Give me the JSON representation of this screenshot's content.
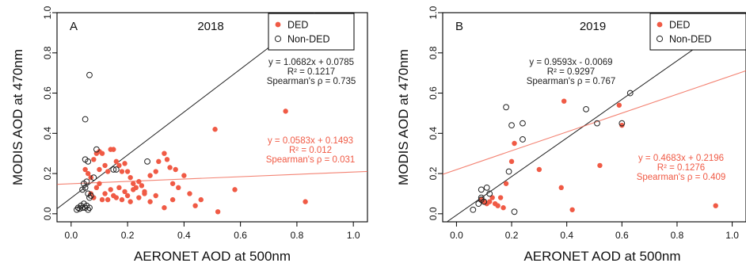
{
  "chart_data": [
    {
      "type": "scatter",
      "panel_label": "A",
      "year_label": "2018",
      "xlabel": "AERONET AOD at 500nm",
      "ylabel": "MODIS AOD at 470nm",
      "xlim": [
        -0.05,
        1.05
      ],
      "ylim": [
        -0.04,
        1.0
      ],
      "x_ticks": [
        "0.0",
        "0.2",
        "0.4",
        "0.6",
        "0.8",
        "1.0"
      ],
      "y_ticks": [
        "0.0",
        "0.2",
        "0.4",
        "0.6",
        "0.8",
        "1.0"
      ],
      "x_tick_values": [
        0,
        0.2,
        0.4,
        0.6,
        0.8,
        1.0
      ],
      "y_tick_values": [
        0,
        0.2,
        0.4,
        0.6,
        0.8,
        1.0
      ],
      "legend_position": "top-right",
      "series": [
        {
          "name": "DED",
          "color": "#f05a45",
          "marker": "filled-circle",
          "points": [
            [
              0.05,
              0.22
            ],
            [
              0.06,
              0.2
            ],
            [
              0.07,
              0.18
            ],
            [
              0.08,
              0.27
            ],
            [
              0.09,
              0.3
            ],
            [
              0.1,
              0.22
            ],
            [
              0.1,
              0.31
            ],
            [
              0.11,
              0.3
            ],
            [
              0.12,
              0.24
            ],
            [
              0.13,
              0.21
            ],
            [
              0.14,
              0.32
            ],
            [
              0.15,
              0.32
            ],
            [
              0.16,
              0.26
            ],
            [
              0.17,
              0.24
            ],
            [
              0.18,
              0.21
            ],
            [
              0.19,
              0.25
            ],
            [
              0.2,
              0.21
            ],
            [
              0.21,
              0.18
            ],
            [
              0.22,
              0.15
            ],
            [
              0.23,
              0.13
            ],
            [
              0.24,
              0.16
            ],
            [
              0.25,
              0.14
            ],
            [
              0.26,
              0.11
            ],
            [
              0.28,
              0.19
            ],
            [
              0.3,
              0.21
            ],
            [
              0.31,
              0.26
            ],
            [
              0.33,
              0.3
            ],
            [
              0.34,
              0.27
            ],
            [
              0.35,
              0.23
            ],
            [
              0.36,
              0.15
            ],
            [
              0.37,
              0.22
            ],
            [
              0.38,
              0.13
            ],
            [
              0.4,
              0.19
            ],
            [
              0.07,
              0.1
            ],
            [
              0.08,
              0.08
            ],
            [
              0.09,
              0.13
            ],
            [
              0.1,
              0.15
            ],
            [
              0.11,
              0.07
            ],
            [
              0.12,
              0.1
            ],
            [
              0.13,
              0.07
            ],
            [
              0.14,
              0.12
            ],
            [
              0.15,
              0.09
            ],
            [
              0.16,
              0.08
            ],
            [
              0.17,
              0.13
            ],
            [
              0.18,
              0.07
            ],
            [
              0.19,
              0.11
            ],
            [
              0.2,
              0.09
            ],
            [
              0.21,
              0.06
            ],
            [
              0.22,
              0.12
            ],
            [
              0.24,
              0.08
            ],
            [
              0.26,
              0.1
            ],
            [
              0.28,
              0.06
            ],
            [
              0.3,
              0.09
            ],
            [
              0.33,
              0.03
            ],
            [
              0.36,
              0.07
            ],
            [
              0.42,
              0.1
            ],
            [
              0.44,
              0.04
            ],
            [
              0.46,
              0.07
            ],
            [
              0.51,
              0.42
            ],
            [
              0.52,
              0.01
            ],
            [
              0.58,
              0.12
            ],
            [
              0.76,
              0.51
            ],
            [
              0.83,
              0.06
            ]
          ]
        },
        {
          "name": "Non-DED",
          "color": "#222222",
          "marker": "open-circle",
          "points": [
            [
              0.02,
              0.02
            ],
            [
              0.025,
              0.03
            ],
            [
              0.03,
              0.025
            ],
            [
              0.035,
              0.04
            ],
            [
              0.04,
              0.03
            ],
            [
              0.045,
              0.05
            ],
            [
              0.05,
              0.03
            ],
            [
              0.055,
              0.04
            ],
            [
              0.06,
              0.02
            ],
            [
              0.065,
              0.03
            ],
            [
              0.04,
              0.12
            ],
            [
              0.045,
              0.15
            ],
            [
              0.05,
              0.13
            ],
            [
              0.055,
              0.16
            ],
            [
              0.06,
              0.1
            ],
            [
              0.065,
              0.08
            ],
            [
              0.07,
              0.09
            ],
            [
              0.05,
              0.47
            ],
            [
              0.065,
              0.69
            ],
            [
              0.05,
              0.27
            ],
            [
              0.06,
              0.26
            ],
            [
              0.09,
              0.32
            ],
            [
              0.15,
              0.22
            ],
            [
              0.16,
              0.22
            ],
            [
              0.27,
              0.26
            ],
            [
              0.08,
              0.18
            ]
          ]
        }
      ],
      "fits": [
        {
          "series": "Non-DED",
          "color": "#222222",
          "slope": 1.0682,
          "intercept": 0.0785,
          "text": [
            "y = 1.0682x + 0.0785",
            "R² = 0.1217",
            "Spearman's ρ = 0.735"
          ]
        },
        {
          "series": "DED",
          "color": "#f05a45",
          "slope": 0.0583,
          "intercept": 0.1493,
          "text": [
            "y = 0.0583x + 0.1493",
            "R² = 0.012",
            "Spearman's ρ = 0.031"
          ]
        }
      ]
    },
    {
      "type": "scatter",
      "panel_label": "B",
      "year_label": "2019",
      "xlabel": "AERONET AOD at 500nm",
      "ylabel": "MODIS AOD at 470nm",
      "xlim": [
        -0.05,
        1.05
      ],
      "ylim": [
        -0.04,
        1.0
      ],
      "x_ticks": [
        "0.0",
        "0.2",
        "0.4",
        "0.6",
        "0.8",
        "1.0"
      ],
      "y_ticks": [
        "0.0",
        "0.2",
        "0.4",
        "0.6",
        "0.8",
        "1.0"
      ],
      "x_tick_values": [
        0,
        0.2,
        0.4,
        0.6,
        0.8,
        1.0
      ],
      "y_tick_values": [
        0,
        0.2,
        0.4,
        0.6,
        0.8,
        1.0
      ],
      "legend_position": "top-right",
      "series": [
        {
          "name": "DED",
          "color": "#f05a45",
          "marker": "filled-circle",
          "points": [
            [
              0.09,
              0.07
            ],
            [
              0.1,
              0.06
            ],
            [
              0.11,
              0.05
            ],
            [
              0.12,
              0.06
            ],
            [
              0.13,
              0.08
            ],
            [
              0.14,
              0.05
            ],
            [
              0.15,
              0.04
            ],
            [
              0.16,
              0.08
            ],
            [
              0.17,
              0.03
            ],
            [
              0.18,
              0.15
            ],
            [
              0.2,
              0.26
            ],
            [
              0.21,
              0.35
            ],
            [
              0.3,
              0.22
            ],
            [
              0.38,
              0.13
            ],
            [
              0.39,
              0.56
            ],
            [
              0.42,
              0.02
            ],
            [
              0.52,
              0.24
            ],
            [
              0.59,
              0.54
            ],
            [
              0.6,
              0.44
            ],
            [
              0.94,
              0.04
            ]
          ]
        },
        {
          "name": "Non-DED",
          "color": "#222222",
          "marker": "open-circle",
          "points": [
            [
              0.06,
              0.02
            ],
            [
              0.08,
              0.05
            ],
            [
              0.09,
              0.07
            ],
            [
              0.09,
              0.08
            ],
            [
              0.1,
              0.06
            ],
            [
              0.09,
              0.12
            ],
            [
              0.11,
              0.13
            ],
            [
              0.12,
              0.1
            ],
            [
              0.19,
              0.21
            ],
            [
              0.18,
              0.53
            ],
            [
              0.2,
              0.44
            ],
            [
              0.21,
              0.01
            ],
            [
              0.24,
              0.37
            ],
            [
              0.24,
              0.45
            ],
            [
              0.47,
              0.52
            ],
            [
              0.51,
              0.45
            ],
            [
              0.6,
              0.45
            ],
            [
              0.63,
              0.6
            ]
          ]
        }
      ],
      "fits": [
        {
          "series": "Non-DED",
          "color": "#222222",
          "slope": 0.9593,
          "intercept": -0.0069,
          "text": [
            "y = 0.9593x - 0.0069",
            "R² = 0.9297",
            "Spearman's ρ = 0.767"
          ]
        },
        {
          "series": "DED",
          "color": "#f05a45",
          "slope": 0.4683,
          "intercept": 0.2196,
          "text": [
            "y = 0.4683x + 0.2196",
            "R² = 0.1276",
            "Spearman's ρ = 0.409"
          ]
        }
      ]
    }
  ]
}
